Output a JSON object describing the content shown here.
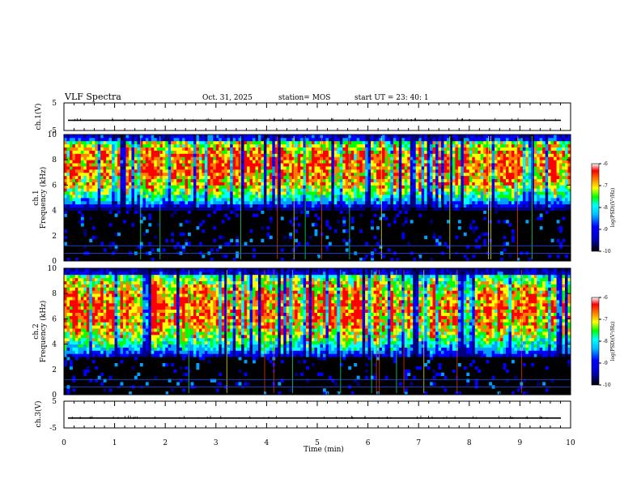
{
  "header": {
    "title": "VLF Spectra",
    "date": "Oct. 31, 2025",
    "station": "station= MOS",
    "start": "start  UT =   23: 40: 1"
  },
  "colors": {
    "background": "#000000",
    "colormap": [
      "#000000",
      "#00007f",
      "#0000ff",
      "#00a0ff",
      "#00ffff",
      "#00ff00",
      "#ffff00",
      "#ff8000",
      "#ff0000",
      "#ffffff"
    ]
  },
  "chart_data": [
    {
      "id": "ch1-voltage",
      "type": "line",
      "ylabel": "ch.1(V)",
      "ylim": [
        -5,
        5
      ],
      "yticks": [
        5,
        -5
      ],
      "xlim": [
        0,
        10
      ],
      "trace_level": -1.3
    },
    {
      "id": "ch1-spectrogram",
      "type": "heatmap",
      "ylabel": "ch.1\nFrequency (kHz)",
      "ylim": [
        0,
        10
      ],
      "yticks": [
        0,
        2,
        4,
        6,
        8,
        10
      ],
      "xlim": [
        0,
        10
      ],
      "band_khz": [
        4,
        10
      ],
      "peak_khz": 7.5,
      "colorbar": {
        "label": "log(PSD)(V²/Hz)",
        "ticks": [
          -6,
          -7,
          -8,
          -9,
          -10
        ],
        "range": [
          -10,
          -6
        ]
      }
    },
    {
      "id": "ch2-spectrogram",
      "type": "heatmap",
      "ylabel": "ch.2\nFrequency (kHz)",
      "ylim": [
        0,
        10
      ],
      "yticks": [
        0,
        2,
        4,
        6,
        8,
        10
      ],
      "xlim": [
        0,
        10
      ],
      "band_khz": [
        3,
        10
      ],
      "peak_khz": 6.8,
      "colorbar": {
        "label": "log(PSD)(V²/Hz)",
        "ticks": [
          -6,
          -7,
          -8,
          -9,
          -10
        ],
        "range": [
          -10,
          -6
        ]
      }
    },
    {
      "id": "ch3-voltage",
      "type": "line",
      "ylabel": "ch.3(V)",
      "ylim": [
        -5,
        5
      ],
      "yticks": [
        5,
        -5
      ],
      "xlim": [
        0,
        10
      ],
      "trace_level": -1.3
    }
  ],
  "xaxis": {
    "label": "Time  (min)",
    "ticks": [
      0,
      1,
      2,
      3,
      4,
      5,
      6,
      7,
      8,
      9,
      10
    ],
    "range": [
      0,
      10
    ]
  }
}
